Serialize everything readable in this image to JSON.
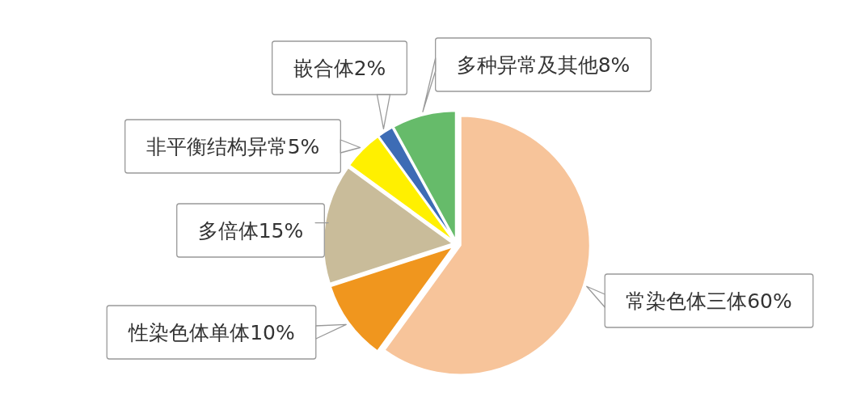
{
  "chart_data": {
    "type": "pie",
    "categories": [
      "常染色体三体",
      "性染色体单体",
      "多倍体",
      "非平衡结构异常",
      "嵌合体",
      "多种异常及其他"
    ],
    "values": [
      60,
      10,
      15,
      5,
      2,
      8
    ],
    "value_labels": [
      "60%",
      "10%",
      "15%",
      "5%",
      "2%",
      "8%"
    ],
    "colors": [
      "#f7c49a",
      "#f0961e",
      "#c9bc9a",
      "#fff000",
      "#3d6cb5",
      "#66bb6a"
    ]
  }
}
